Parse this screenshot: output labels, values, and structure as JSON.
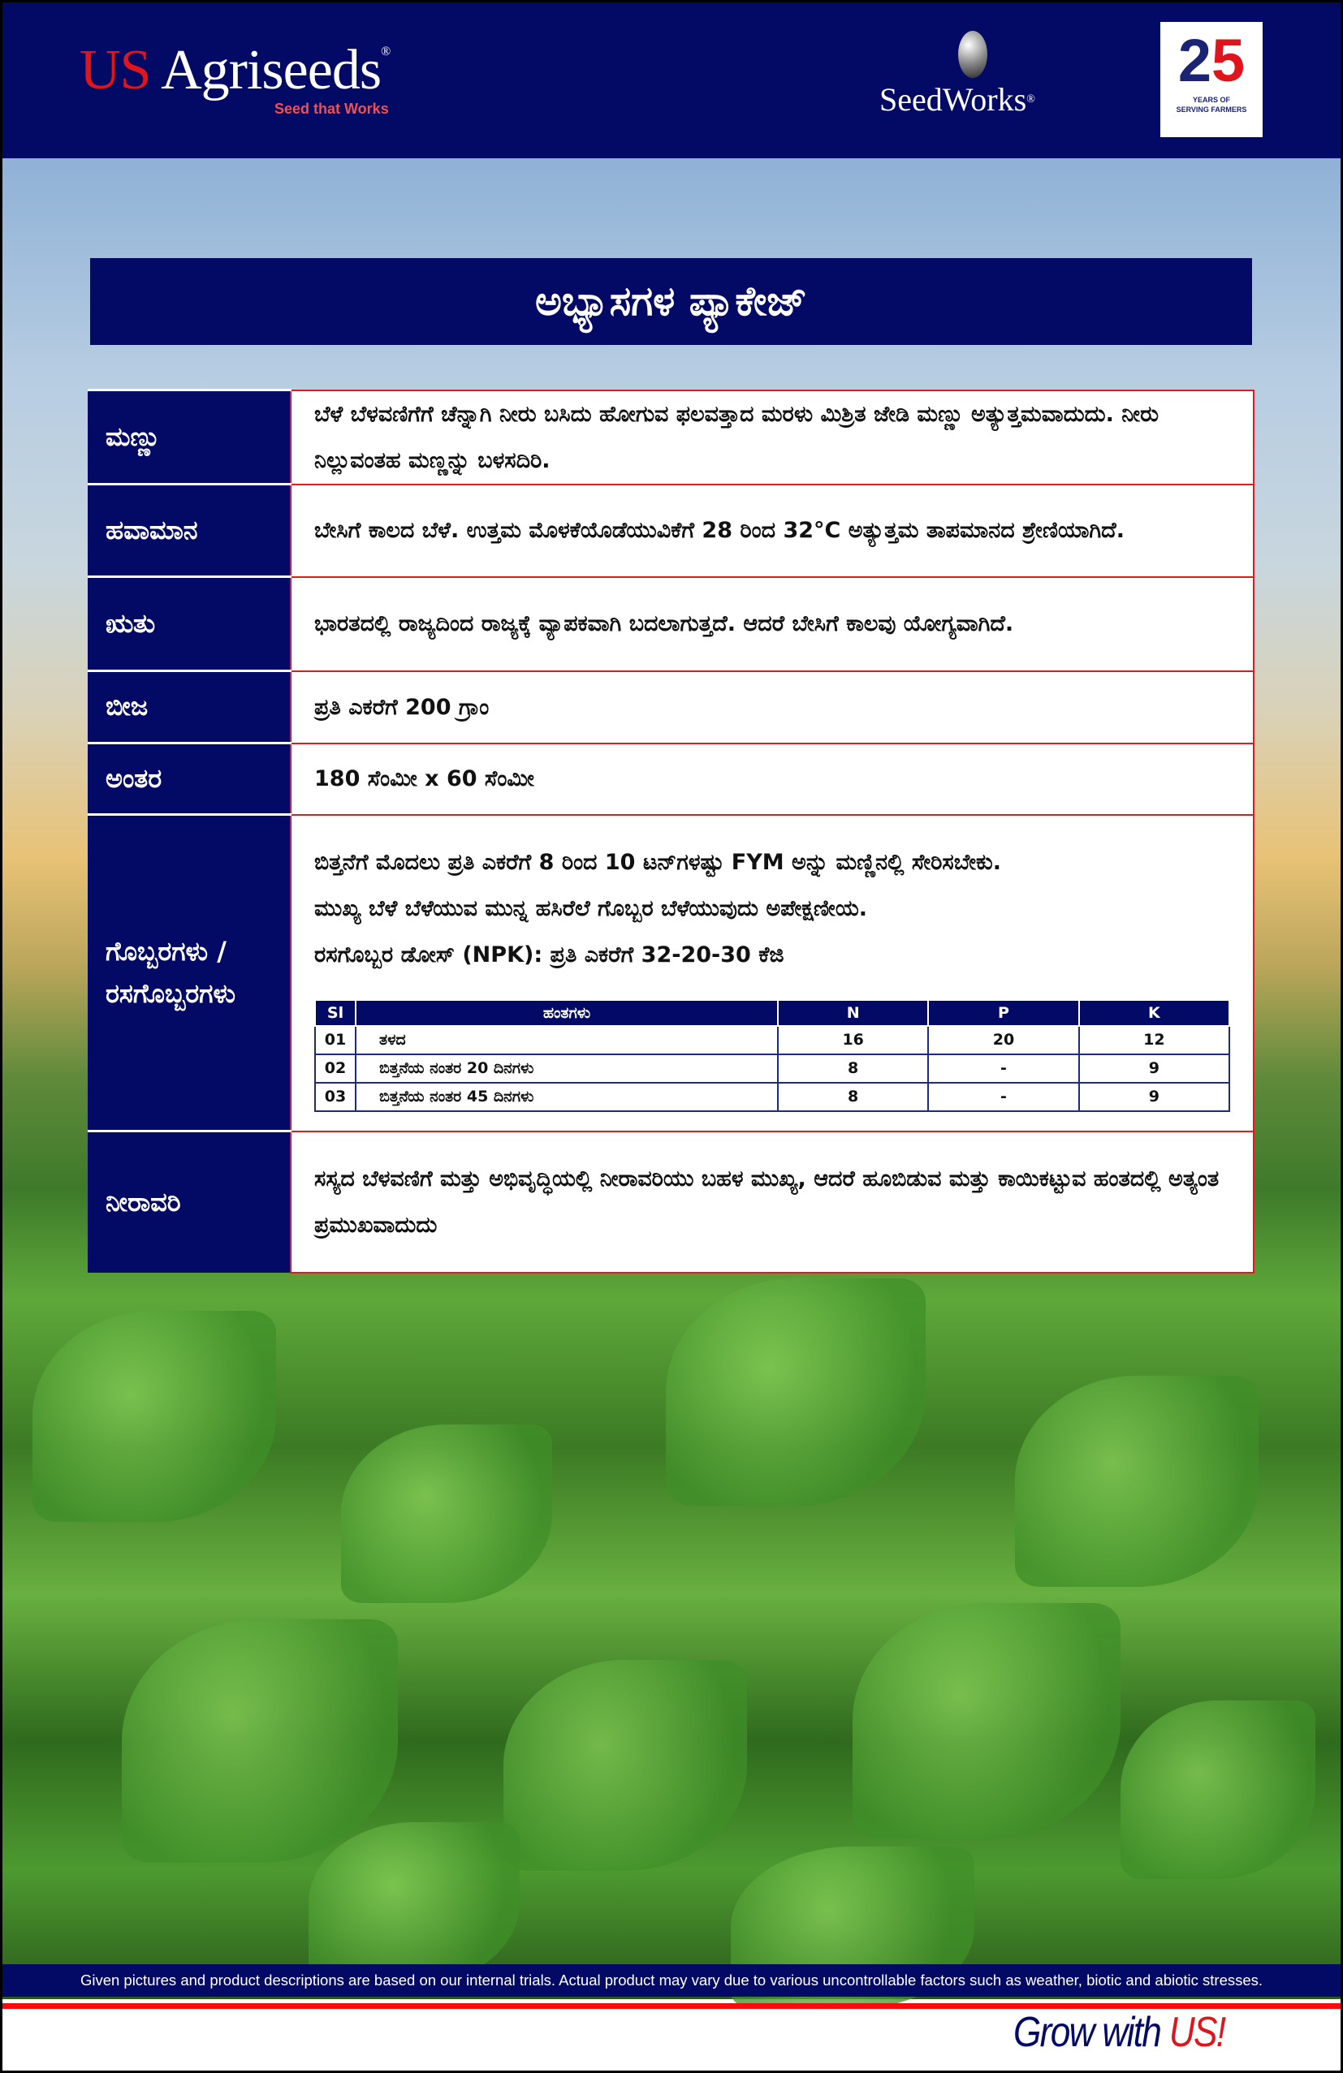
{
  "header": {
    "logo_us": "US",
    "logo_agriseeds": "Agriseeds",
    "logo_reg": "®",
    "tagline": "Seed that Works",
    "seedworks": "SeedWorks",
    "badge_number_a": "2",
    "badge_number_b": "5",
    "badge_line1": "YEARS OF",
    "badge_line2": "SERVING FARMERS"
  },
  "title": "ಅಭ್ಯಾಸಗಳ ಪ್ಯಾಕೇಜ್",
  "rows": [
    {
      "label": "ಮಣ್ಣು",
      "value": "ಬೆಳೆ ಬೆಳವಣಿಗೆಗೆ ಚೆನ್ನಾಗಿ ನೀರು ಬಸಿದು ಹೋಗುವ ಫಲವತ್ತಾದ ಮರಳು ಮಿಶ್ರಿತ ಜೇಡಿ ಮಣ್ಣು ಅತ್ಯುತ್ತಮವಾದುದು. ನೀರು ನಿಲ್ಲುವಂತಹ ಮಣ್ಣನ್ನು ಬಳಸದಿರಿ."
    },
    {
      "label": "ಹವಾಮಾನ",
      "value": "ಬೇಸಿಗೆ ಕಾಲದ ಬೆಳೆ. ಉತ್ತಮ ಮೊಳಕೆಯೊಡೆಯುವಿಕೆಗೆ 28 ರಿಂದ 32°C ಅತ್ಯುತ್ತಮ ತಾಪಮಾನದ ಶ್ರೇಣಿಯಾಗಿದೆ."
    },
    {
      "label": "ಋತು",
      "value": "ಭಾರತದಲ್ಲಿ ರಾಜ್ಯದಿಂದ ರಾಜ್ಯಕ್ಕೆ ವ್ಯಾಪಕವಾಗಿ ಬದಲಾಗುತ್ತದೆ. ಆದರೆ ಬೇಸಿಗೆ ಕಾಲವು ಯೋಗ್ಯವಾಗಿದೆ."
    },
    {
      "label": "ಬೀಜ",
      "value": "ಪ್ರತಿ ಎಕರೆಗೆ 200 ಗ್ರಾಂ"
    },
    {
      "label": "ಅಂತರ",
      "value": "180 ಸೆಂಮೀ x 60 ಸೆಂಮೀ"
    }
  ],
  "fertilizer": {
    "label": "ಗೊಬ್ಬರಗಳು / ರಸಗೊಬ್ಬರಗಳು",
    "line1": "ಬಿತ್ತನೆಗೆ ಮೊದಲು ಪ್ರತಿ ಎಕರೆಗೆ 8 ರಿಂದ 10 ಟನ್‌ಗಳಷ್ಟು FYM ಅನ್ನು ಮಣ್ಣಿನಲ್ಲಿ ಸೇರಿಸಬೇಕು.",
    "line2": "ಮುಖ್ಯ ಬೆಳೆ ಬೆಳೆಯುವ ಮುನ್ನ ಹಸಿರೆಲೆ ಗೊಬ್ಬರ ಬೆಳೆಯುವುದು ಅಪೇಕ್ಷಣೀಯ.",
    "line3": "ರಸಗೊಬ್ಬರ ಡೋಸ್ (NPK): ಪ್ರತಿ ಎಕರೆಗೆ 32-20-30 ಕೆಜಿ",
    "table": {
      "headers": [
        "Sl",
        "ಹಂತಗಳು",
        "N",
        "P",
        "K"
      ],
      "rows": [
        [
          "01",
          "ತಳದ",
          "16",
          "20",
          "12"
        ],
        [
          "02",
          "ಬಿತ್ತನೆಯ ನಂತರ 20 ದಿನಗಳು",
          "8",
          "-",
          "9"
        ],
        [
          "03",
          "ಬಿತ್ತನೆಯ ನಂತರ 45 ದಿನಗಳು",
          "8",
          "-",
          "9"
        ]
      ]
    }
  },
  "irrigation": {
    "label": "ನೀರಾವರಿ",
    "value": "ಸಸ್ಯದ ಬೆಳವಣಿಗೆ ಮತ್ತು ಅಭಿವೃದ್ಧಿಯಲ್ಲಿ ನೀರಾವರಿಯು ಬಹಳ ಮುಖ್ಯ, ಆದರೆ ಹೂಬಿಡುವ ಮತ್ತು ಕಾಯಿಕಟ್ಟುವ ಹಂತದಲ್ಲಿ ಅತ್ಯಂತ ಪ್ರಮುಖವಾದುದು"
  },
  "disclaimer": "Given pictures and product descriptions are based on our internal trials. Actual product may vary due to various uncontrollable factors such as weather, biotic and abiotic stresses.",
  "slogan": {
    "part1": "Grow with ",
    "part2": "US",
    "part3": "!"
  },
  "colors": {
    "navy": "#020a66",
    "red": "#e0151b"
  }
}
